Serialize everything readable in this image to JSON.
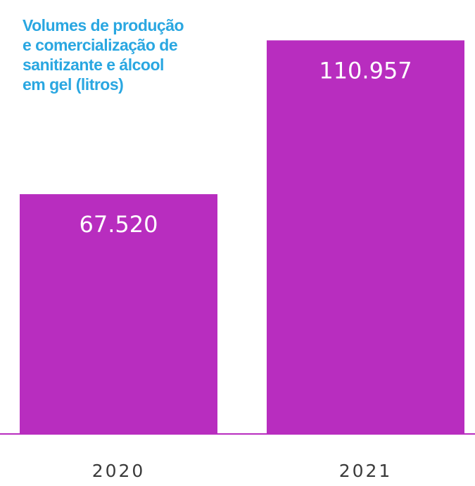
{
  "chart_data": {
    "type": "bar",
    "title": "Volumes de produção\ne comercialização de\nsanitizante e álcool\nem gel (litros)",
    "categories": [
      "2020",
      "2021"
    ],
    "values": [
      67520,
      110957
    ],
    "data_labels": [
      "67.520",
      "110.957"
    ],
    "ylim": [
      0,
      116000
    ],
    "grid": false,
    "legend": "none",
    "colors": {
      "bar": "#b82dbf",
      "baseline": "#b82dbf",
      "title": "#2aa7e1",
      "tick_label": "#3a3a3a",
      "data_label": "#ffffff"
    }
  }
}
